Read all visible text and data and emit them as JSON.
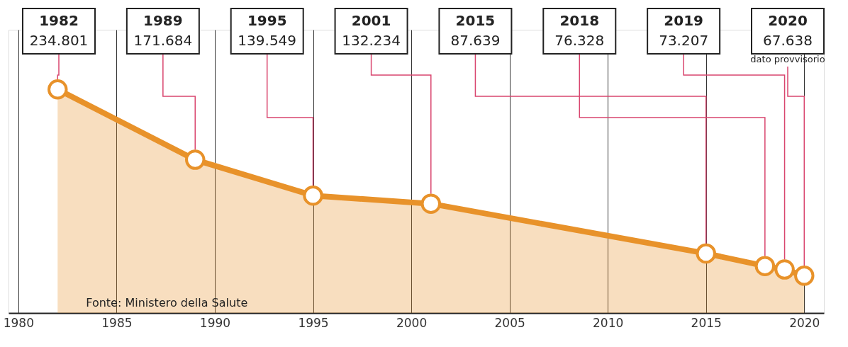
{
  "chart_data": {
    "type": "area",
    "x": [
      1982,
      1989,
      1995,
      2001,
      2015,
      2018,
      2019,
      2020
    ],
    "series": [
      {
        "color": "#e8922a",
        "values": [
          234801,
          171684,
          139549,
          132234,
          87639,
          76328,
          73207,
          67638
        ],
        "value_labels": [
          "234.801",
          "171.684",
          "139.549",
          "132.234",
          "87.639",
          "76.328",
          "73.207",
          "67.638"
        ]
      }
    ],
    "xlim": [
      1979.5,
      2021
    ],
    "xticks": [
      1980,
      1985,
      1990,
      1995,
      2000,
      2005,
      2010,
      2015,
      2020
    ],
    "grid": "x",
    "marker": "circle",
    "tick_labels": "x",
    "annotations": [
      "Fonte: Ministero della Salute",
      "dato provvisorio",
      "1982",
      "1989",
      "1995",
      "2001",
      "2015",
      "2018",
      "2019",
      "2020"
    ]
  }
}
